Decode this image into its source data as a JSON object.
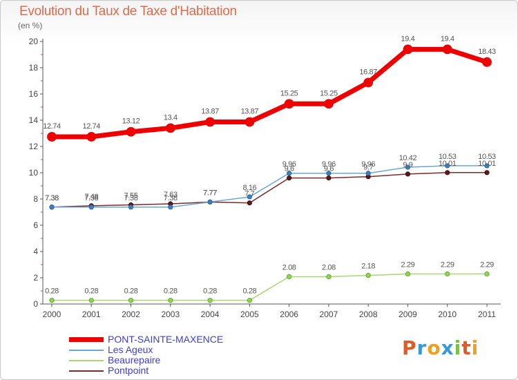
{
  "title": "Evolution du Taux de Taxe d'Habitation",
  "unit": "(en %)",
  "logo": {
    "text": "Proxiti",
    "letters": [
      "P",
      "r",
      "o",
      "x",
      "i",
      "t",
      "i"
    ],
    "colors": [
      "#e05a28",
      "#3a9ad9",
      "#f0a020",
      "#3a9ad9",
      "#7ac143",
      "#e05a28",
      "#f0a020"
    ]
  },
  "chart_data": {
    "type": "line",
    "title": "Evolution du Taux de Taxe d'Habitation",
    "ylabel": "(en %)",
    "xlabel": "",
    "x": [
      "2000",
      "2001",
      "2002",
      "2003",
      "2004",
      "2005",
      "2006",
      "2007",
      "2008",
      "2009",
      "2010",
      "2011"
    ],
    "ylim": [
      0,
      20
    ],
    "yticks": [
      "0",
      "2",
      "4",
      "6",
      "8",
      "10",
      "12",
      "14",
      "16",
      "18",
      "20"
    ],
    "grid": false,
    "legend_position": "bottom-left",
    "series": [
      {
        "name": "PONT-SAINTE-MAXENCE",
        "color": "#ee0000",
        "values": [
          12.74,
          12.74,
          13.12,
          13.4,
          13.87,
          13.87,
          15.25,
          15.25,
          16.87,
          19.4,
          19.4,
          18.43
        ],
        "labels": [
          "12.74",
          "12.74",
          "13.12",
          "13.4",
          "13.87",
          "13.87",
          "15.25",
          "15.25",
          "16.87",
          "19.4",
          "19.4",
          "18.43"
        ]
      },
      {
        "name": "Les Ageux",
        "color": "#6aa6d6",
        "values": [
          7.38,
          7.38,
          7.38,
          7.38,
          7.77,
          8.16,
          9.96,
          9.96,
          9.96,
          10.42,
          10.53,
          10.53
        ],
        "labels": [
          "7.38",
          "7.38",
          "7.38",
          "7.38",
          "7.77",
          "8.16",
          "9.96",
          "9.96",
          "9.96",
          "10.42",
          "10.53",
          "10.53"
        ]
      },
      {
        "name": "Beaurepaire",
        "color": "#a6d86e",
        "values": [
          0.28,
          0.28,
          0.28,
          0.28,
          0.28,
          0.28,
          2.08,
          2.08,
          2.18,
          2.29,
          2.29,
          2.29
        ],
        "labels": [
          "0.28",
          "0.28",
          "0.28",
          "0.28",
          "0.28",
          "0.28",
          "2.08",
          "2.08",
          "2.18",
          "2.29",
          "2.29",
          "2.29"
        ]
      },
      {
        "name": "Pontpoint",
        "color": "#7a2a2a",
        "values": [
          7.38,
          7.48,
          7.55,
          7.63,
          7.77,
          7.7,
          9.6,
          9.6,
          9.7,
          9.9,
          10.01,
          10.01
        ],
        "labels": [
          "7.38",
          "7.48",
          "7.55",
          "7.63",
          "7.77",
          "7.7",
          "9.6",
          "9.6",
          "9.7",
          "9.9",
          "10.01",
          "10.01"
        ]
      }
    ]
  }
}
